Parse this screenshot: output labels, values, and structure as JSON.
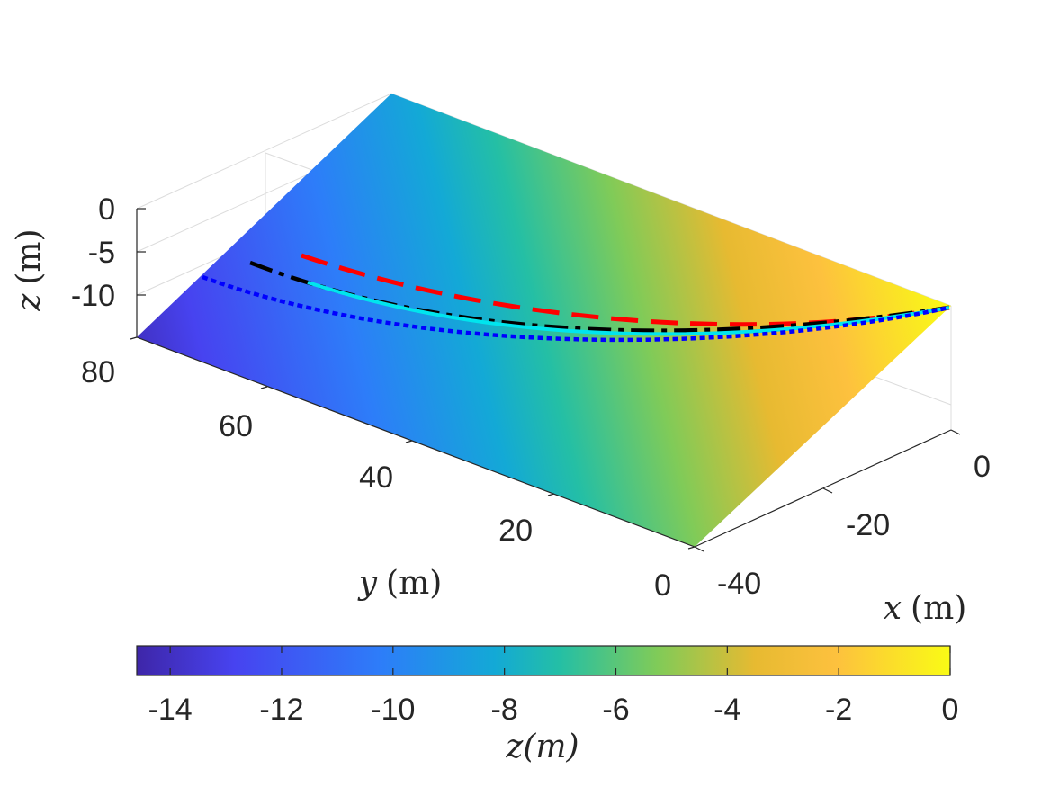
{
  "chart_data": {
    "type": "surface3d",
    "surface": {
      "description_values": "planar slope z = 0 at y = 0 edge toward x-y far corner, reaching about -14.5 at the opposite edge",
      "z_range": [
        -14.5,
        0
      ]
    },
    "axes": {
      "x": {
        "label_var": "x",
        "label_unit": "(m)",
        "ticks": [
          "0",
          "-20",
          "-40"
        ],
        "lim": [
          -45,
          5
        ]
      },
      "y": {
        "label_var": "y",
        "label_unit": "(m)",
        "ticks": [
          "0",
          "20",
          "40",
          "60",
          "80"
        ],
        "lim": [
          0,
          80
        ]
      },
      "z": {
        "label_var": "z",
        "label_unit": "(m)",
        "ticks": [
          "0",
          "-5",
          "-10"
        ],
        "lim": [
          -15,
          0
        ]
      }
    },
    "colorbar": {
      "ticks": [
        "-14",
        "-12",
        "-10",
        "-8",
        "-6",
        "-4",
        "-2",
        "0"
      ],
      "label": "z(m)",
      "range": [
        -14.6,
        0
      ],
      "colormap": [
        "#3e26a8",
        "#4743f0",
        "#2d7df9",
        "#13a9d6",
        "#24bfa5",
        "#80cb58",
        "#e7ba31",
        "#fdc13e",
        "#f9fb15"
      ]
    },
    "series": [
      {
        "style": "dashed",
        "color": "#ff0000"
      },
      {
        "style": "dashdot",
        "color": "#000000"
      },
      {
        "style": "solid",
        "color": "#00e5ee"
      },
      {
        "style": "dotted",
        "color": "#0000ff"
      }
    ]
  }
}
